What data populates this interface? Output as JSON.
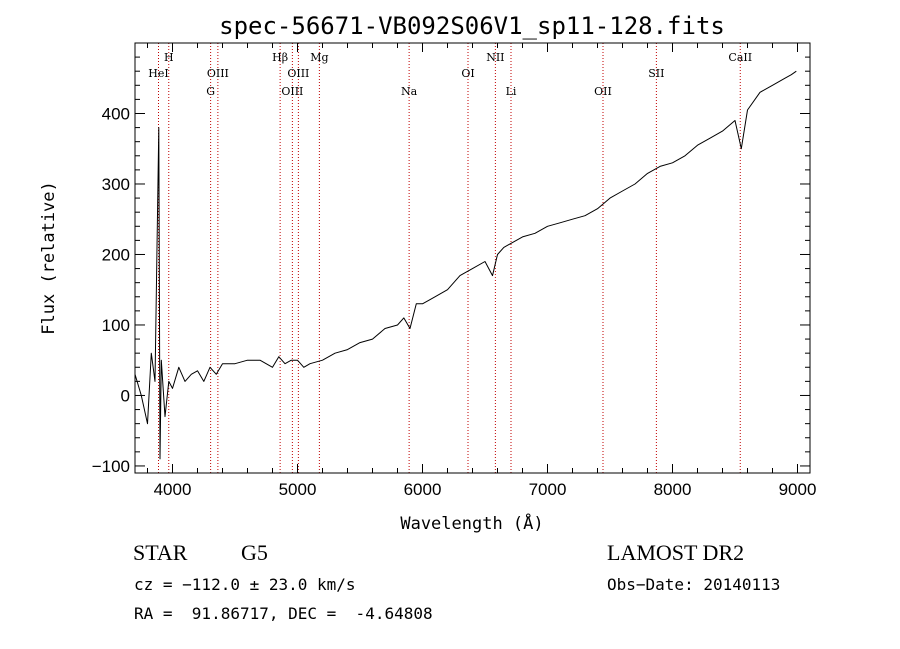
{
  "chart_data": {
    "type": "line",
    "title": "spec-56671-VB092S06V1_sp11-128.fits",
    "xlabel": "Wavelength (Å)",
    "ylabel": "Flux (relative)",
    "xlim": [
      3700,
      9100
    ],
    "ylim": [
      -110,
      500
    ],
    "x_ticks": [
      4000,
      5000,
      6000,
      7000,
      8000,
      9000
    ],
    "y_ticks": [
      -100,
      0,
      100,
      200,
      300,
      400
    ],
    "grid": false,
    "series": [
      {
        "x": [
          3700,
          3750,
          3800,
          3830,
          3860,
          3890,
          3900,
          3910,
          3940,
          3970,
          4000,
          4050,
          4100,
          4150,
          4200,
          4250,
          4300,
          4350,
          4400,
          4500,
          4600,
          4700,
          4800,
          4850,
          4900,
          4950,
          5000,
          5050,
          5100,
          5200,
          5300,
          5400,
          5500,
          5600,
          5700,
          5800,
          5850,
          5900,
          5950,
          6000,
          6050,
          6100,
          6200,
          6300,
          6400,
          6500,
          6560,
          6600,
          6650,
          6700,
          6800,
          6900,
          7000,
          7100,
          7200,
          7300,
          7400,
          7500,
          7600,
          7700,
          7800,
          7900,
          8000,
          8100,
          8200,
          8300,
          8400,
          8500,
          8550,
          8600,
          8700,
          8800,
          8900,
          8950,
          8990
        ],
        "y": [
          30,
          0,
          -40,
          60,
          20,
          380,
          -90,
          50,
          -30,
          20,
          10,
          40,
          20,
          30,
          35,
          20,
          40,
          30,
          45,
          45,
          50,
          50,
          40,
          55,
          45,
          50,
          50,
          40,
          45,
          50,
          60,
          65,
          75,
          80,
          95,
          100,
          110,
          95,
          130,
          130,
          135,
          140,
          150,
          170,
          180,
          190,
          170,
          200,
          210,
          215,
          225,
          230,
          240,
          245,
          250,
          255,
          265,
          280,
          290,
          300,
          315,
          325,
          330,
          340,
          355,
          365,
          375,
          390,
          350,
          405,
          430,
          440,
          450,
          455,
          460
        ]
      }
    ],
    "lines": [
      {
        "label": "HeI",
        "x": 3888,
        "row": 2
      },
      {
        "label": "H",
        "x": 3970,
        "row": 1
      },
      {
        "label": "OIII",
        "x": 4363,
        "row": 2
      },
      {
        "label": "G",
        "x": 4305,
        "row": 3
      },
      {
        "label": "Hβ",
        "x": 4861,
        "row": 1
      },
      {
        "label": "OIII",
        "x": 4959,
        "row": 3
      },
      {
        "label": "OIII",
        "x": 5007,
        "row": 2
      },
      {
        "label": "Mg",
        "x": 5175,
        "row": 1
      },
      {
        "label": "Na",
        "x": 5893,
        "row": 3
      },
      {
        "label": "OI",
        "x": 6364,
        "row": 2
      },
      {
        "label": "NII",
        "x": 6583,
        "row": 1
      },
      {
        "label": "Li",
        "x": 6708,
        "row": 3
      },
      {
        "label": "OII",
        "x": 7444,
        "row": 3
      },
      {
        "label": "SII",
        "x": 7871,
        "row": 2
      },
      {
        "label": "CaII",
        "x": 8542,
        "row": 1
      }
    ]
  },
  "info": {
    "class_label": "STAR",
    "subclass": "G5",
    "survey": "LAMOST DR2",
    "cz": "cz = −112.0 ± 23.0 km/s",
    "obs_date": "Obs−Date: 20140113",
    "radec": "RA =  91.86717, DEC =  -4.64808"
  },
  "colors": {
    "spectrum": "#000000",
    "line_markers": "#c00000",
    "axes": "#000000"
  }
}
